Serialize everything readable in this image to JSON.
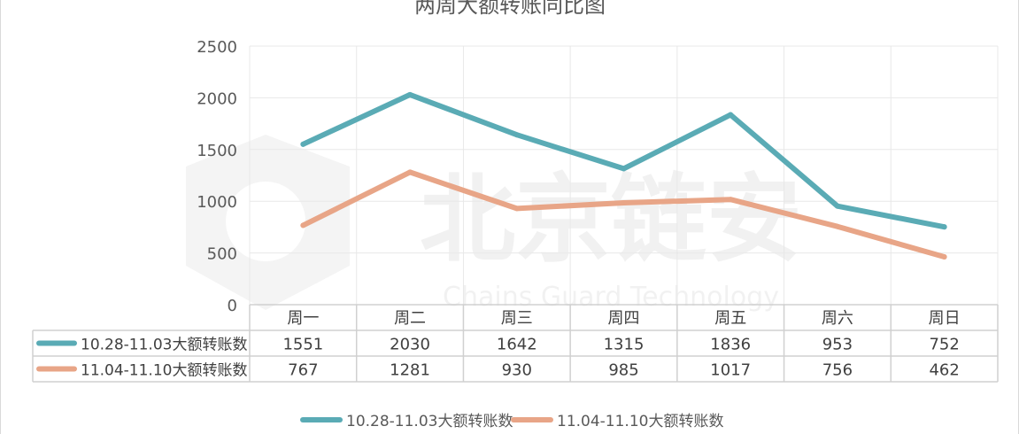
{
  "chart_data": {
    "type": "line",
    "title": "两周大额转账同比图",
    "categories": [
      "周一",
      "周二",
      "周三",
      "周四",
      "周五",
      "周六",
      "周日"
    ],
    "ylim": [
      0,
      2500
    ],
    "yticks": [
      0,
      500,
      1000,
      1500,
      2000,
      2500
    ],
    "grid": true,
    "legend_position": "bottom",
    "series": [
      {
        "name": "10.28-11.03大额转账数",
        "color": "#5aabb5",
        "values": [
          1551,
          2030,
          1642,
          1315,
          1836,
          953,
          752
        ]
      },
      {
        "name": "11.04-11.10大额转账数",
        "color": "#e8a587",
        "values": [
          767,
          1281,
          930,
          985,
          1017,
          756,
          462
        ]
      }
    ]
  },
  "watermark": {
    "text": "北京链安",
    "subtext": "Chains Guard Technology"
  }
}
